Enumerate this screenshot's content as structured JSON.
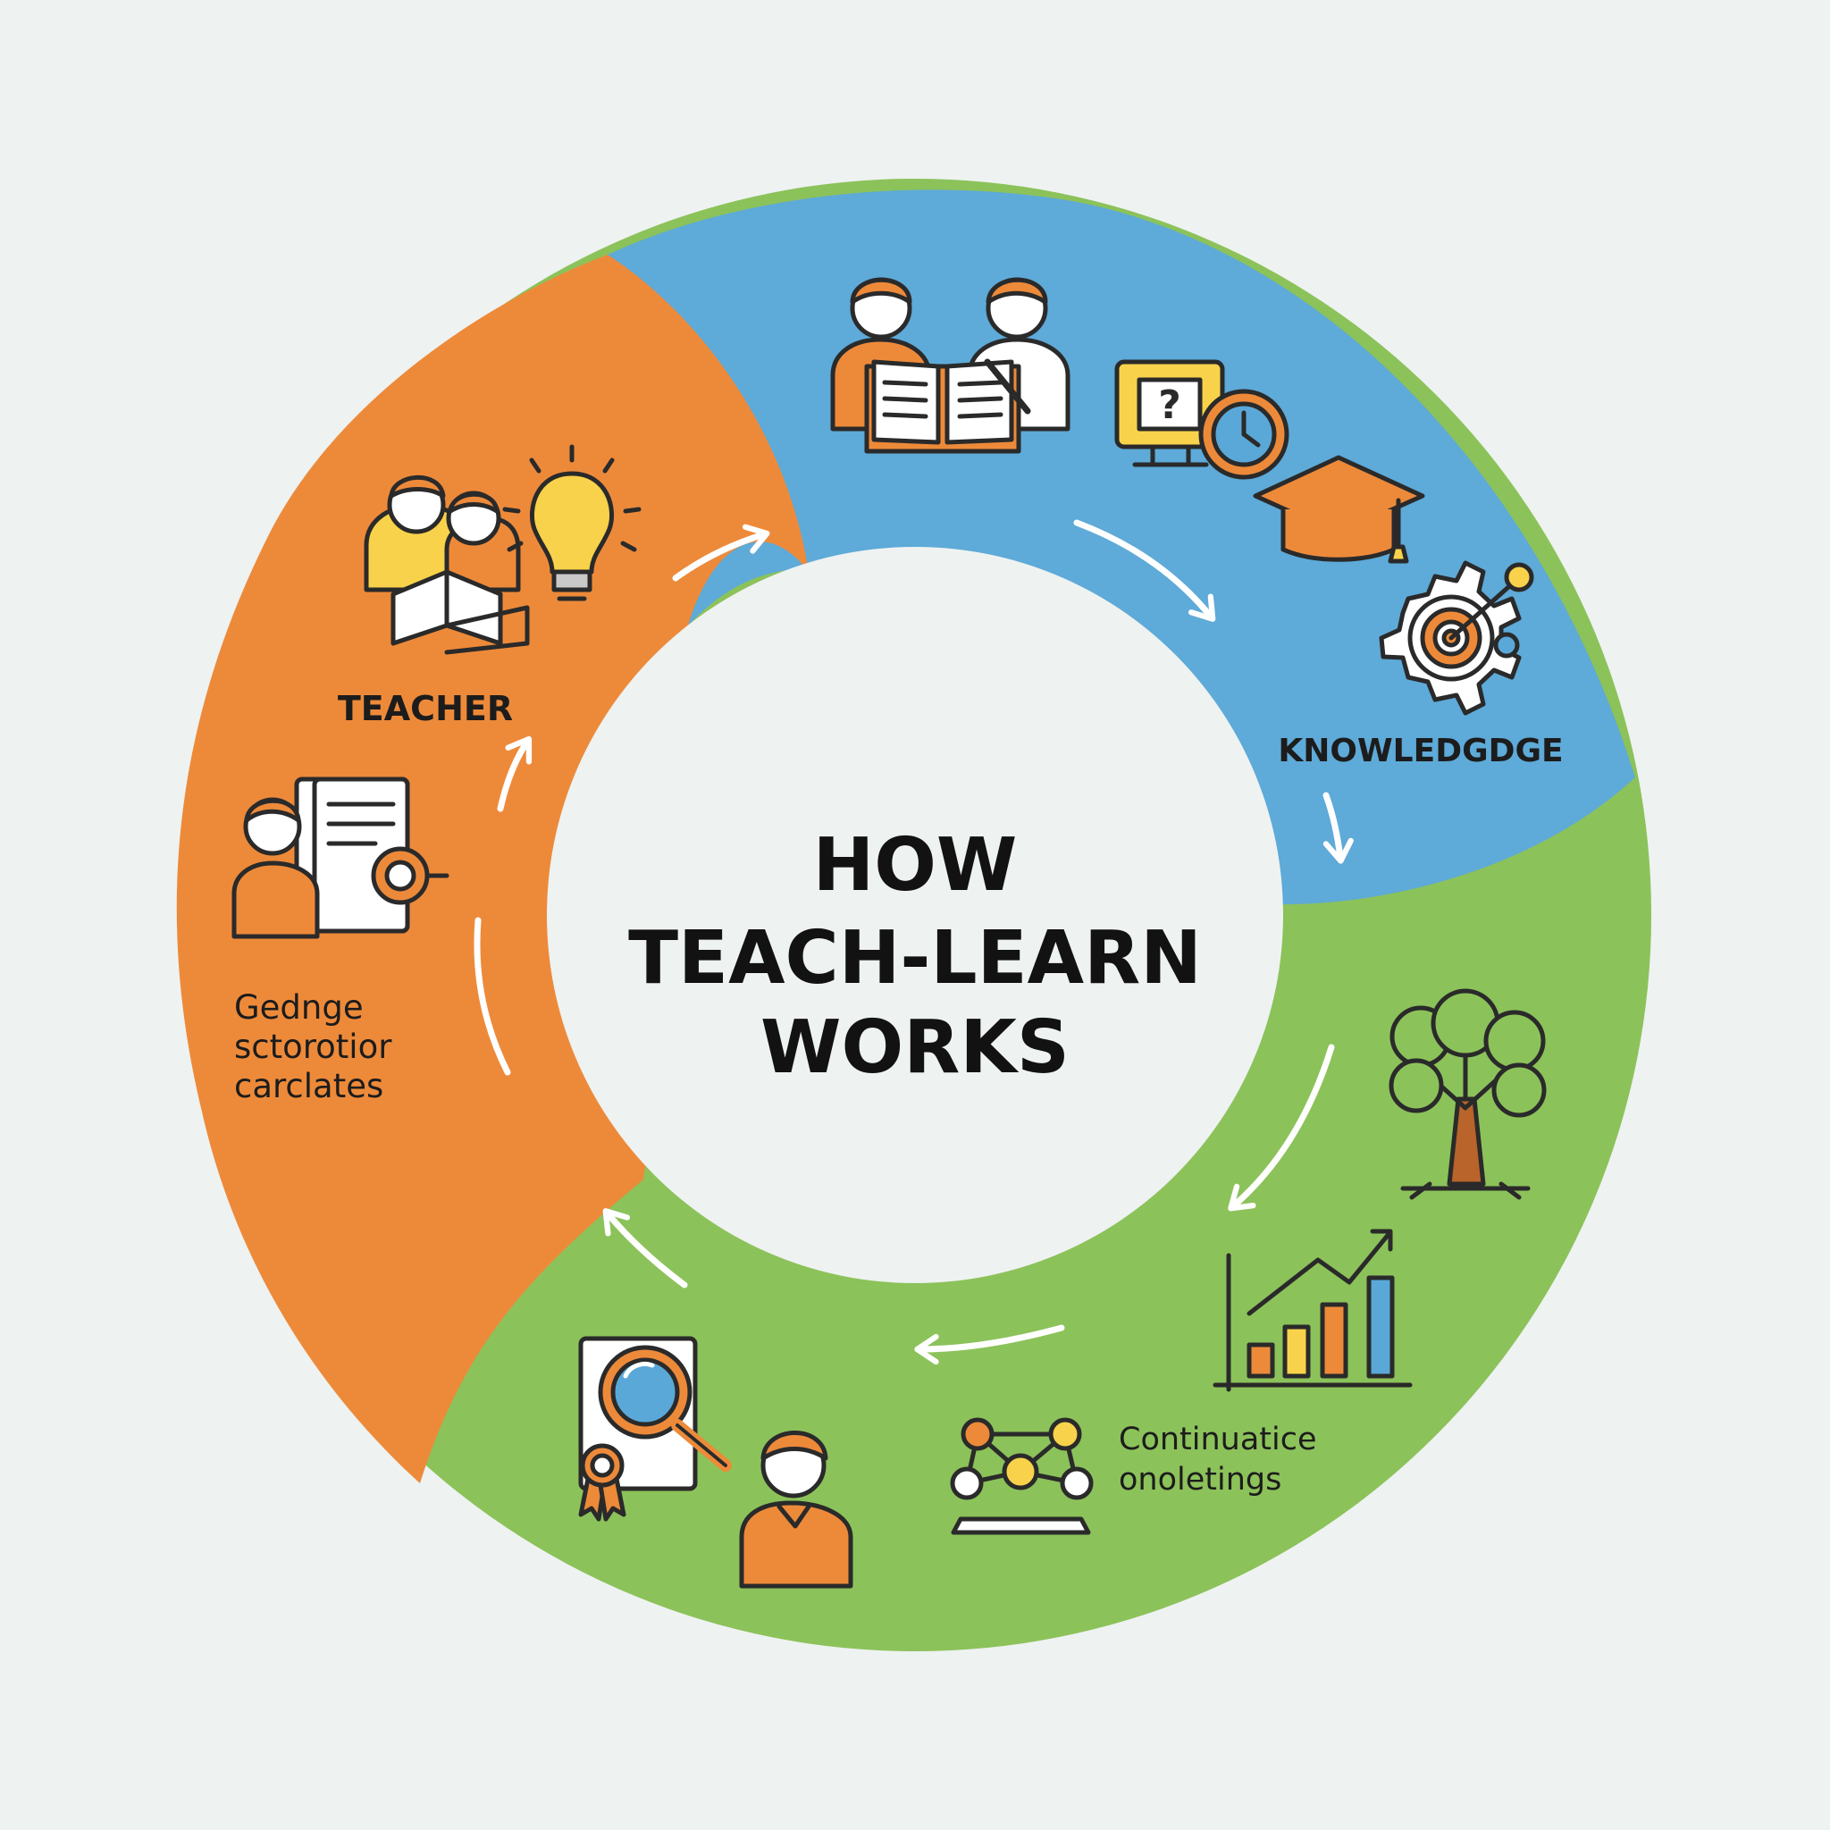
{
  "title": {
    "lines": [
      "HOW",
      "TEACH-LEARN",
      "WORKS"
    ]
  },
  "segments": [
    {
      "label": "TEACHER",
      "color": "#ed8a3a"
    },
    {
      "label": "KNOWLEDGDGE",
      "color": "#5eaad8"
    },
    {
      "label": "",
      "color": "#8cc25a"
    }
  ],
  "text_blocks": {
    "left": [
      "Gednge",
      "sctorotior",
      "carclates"
    ],
    "bottom_right": [
      "Continuatice",
      "onoletings"
    ]
  },
  "icons": [
    "two-learners-book-icon",
    "lightbulb-icon",
    "students-open-book-icon",
    "quiz-board-icon",
    "clock-icon",
    "graduation-cap-icon",
    "gear-target-icon",
    "person-document-icon",
    "tree-icon",
    "growth-chart-icon",
    "network-icon",
    "document-magnifier-icon",
    "award-ribbon-icon",
    "student-icon"
  ],
  "colors": {
    "background": "#eef2f1",
    "center": "#eef2f1",
    "accent_orange": "#ed8a3a",
    "accent_yellow": "#f8d24a",
    "accent_blue": "#5aa8d8"
  }
}
